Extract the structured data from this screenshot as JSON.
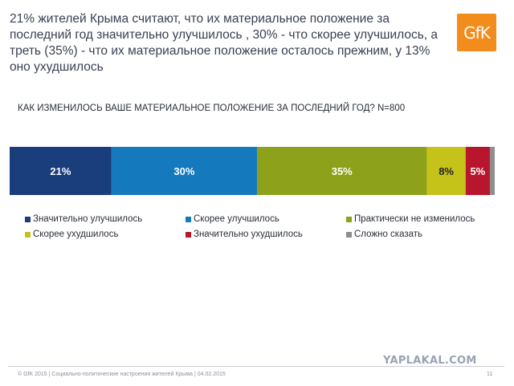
{
  "header": {
    "headline": "21% жителей Крыма считают, что их материальное положение за последний год значительно улучшилось , 30% - что скорее улучшилось, а треть (35%) - что их материальное положение осталось прежним, у 13% оно ухудшилось",
    "logo_text": "GfK"
  },
  "chart_data": {
    "type": "bar",
    "orientation": "horizontal-stacked",
    "title": "КАК ИЗМЕНИЛОСЬ ВАШЕ МАТЕРИАЛЬНОЕ ПОЛОЖЕНИЕ ЗА ПОСЛЕДНИЙ ГОД? N=800",
    "legend_position": "bottom",
    "series": [
      {
        "name": "Значительно улучшилось",
        "value": 21,
        "label": "21%",
        "color": "#1a3d7c",
        "label_color": "#ffffff"
      },
      {
        "name": "Скорее улучшилось",
        "value": 30,
        "label": "30%",
        "color": "#1579be",
        "label_color": "#ffffff"
      },
      {
        "name": "Практически не изменилось",
        "value": 35,
        "label": "35%",
        "color": "#8ea11b",
        "label_color": "#ffffff"
      },
      {
        "name": "Скорее ухудшилось",
        "value": 8,
        "label": "8%",
        "color": "#c5c21a",
        "label_color": "#1e2230"
      },
      {
        "name": "Значительно ухудшилось",
        "value": 5,
        "label": "5%",
        "color": "#b8162f",
        "label_color": "#ffffff"
      },
      {
        "name": "Сложно сказать",
        "value": 1,
        "label": "",
        "color": "#8e8e8e",
        "label_color": "#ffffff"
      }
    ]
  },
  "watermark": "YAPLAKAL.COM",
  "footer": {
    "text": "© GfK 2015 | Социально-политические настроения жителей Крыма | 04.02.2015",
    "page": "11"
  }
}
